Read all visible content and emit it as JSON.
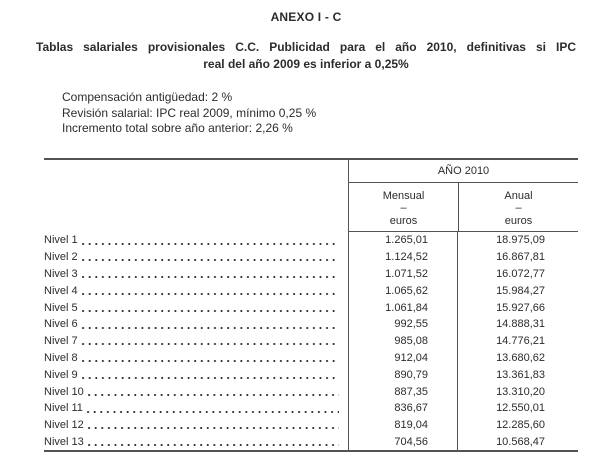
{
  "page": {
    "title": "ANEXO I - C",
    "subtitle": {
      "line1": "Tablas salariales provisionales C.C. Publicidad para el año 2010, definitivas si IPC",
      "line2": "real del año 2009 es inferior a 0,25%"
    },
    "notes": [
      "Compensación antigüedad: 2 %",
      "Revisión salarial: IPC real 2009, mínimo 0,25 %",
      "Incremento total sobre año anterior: 2,26 %"
    ]
  },
  "table": {
    "year_header": "AÑO 2010",
    "columns": [
      {
        "label": "Mensual",
        "dash": "–",
        "unit": "euros"
      },
      {
        "label": "Anual",
        "dash": "–",
        "unit": "euros"
      }
    ],
    "rows": [
      {
        "label": "Nivel 1",
        "mensual": "1.265,01",
        "anual": "18.975,09"
      },
      {
        "label": "Nivel 2",
        "mensual": "1.124,52",
        "anual": "16.867,81"
      },
      {
        "label": "Nivel 3",
        "mensual": "1.071,52",
        "anual": "16.072,77"
      },
      {
        "label": "Nivel 4",
        "mensual": "1.065,62",
        "anual": "15.984,27"
      },
      {
        "label": "Nivel 5",
        "mensual": "1.061,84",
        "anual": "15.927,66"
      },
      {
        "label": "Nivel 6",
        "mensual": "992,55",
        "anual": "14.888,31"
      },
      {
        "label": "Nivel 7",
        "mensual": "985,08",
        "anual": "14.776,21"
      },
      {
        "label": "Nivel 8",
        "mensual": "912,04",
        "anual": "13.680,62"
      },
      {
        "label": "Nivel 9",
        "mensual": "890,79",
        "anual": "13.361,83"
      },
      {
        "label": "Nivel 10",
        "mensual": "887,35",
        "anual": "13.310,20"
      },
      {
        "label": "Nivel 11",
        "mensual": "836,67",
        "anual": "12.550,01"
      },
      {
        "label": "Nivel 12",
        "mensual": "819,04",
        "anual": "12.285,60"
      },
      {
        "label": "Nivel 13",
        "mensual": "704,56",
        "anual": "10.568,47"
      }
    ]
  },
  "colors": {
    "text": "#2a2c2f",
    "line": "#515356",
    "background": "#ffffff"
  }
}
